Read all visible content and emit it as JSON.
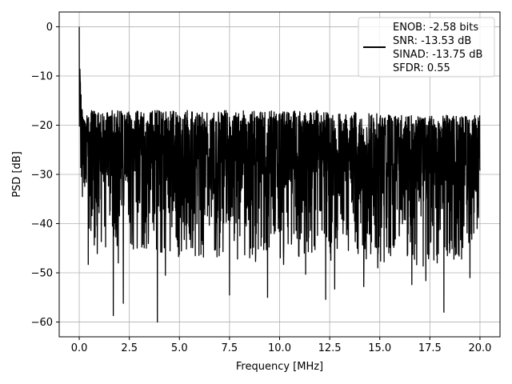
{
  "chart_data": {
    "type": "line",
    "xlabel": "Frequency [MHz]",
    "ylabel": "PSD [dB]",
    "xlim": [
      -1.0,
      21.0
    ],
    "ylim": [
      -63,
      3
    ],
    "x_ticks": [
      0.0,
      2.5,
      5.0,
      7.5,
      10.0,
      12.5,
      15.0,
      17.5,
      20.0
    ],
    "x_tick_labels": [
      "0.0",
      "2.5",
      "5.0",
      "7.5",
      "10.0",
      "12.5",
      "15.0",
      "17.5",
      "20.0"
    ],
    "y_ticks": [
      0,
      -10,
      -20,
      -30,
      -40,
      -50,
      -60
    ],
    "y_tick_labels": [
      "0",
      "−10",
      "−20",
      "−30",
      "−40",
      "−50",
      "−60"
    ],
    "grid": true,
    "legend_position": "top-right",
    "legend_entries": [
      "ENOB: -2.58 bits",
      "SNR: -13.53 dB",
      "SINAD: -13.75 dB",
      "SFDR: 0.55"
    ],
    "series": [
      {
        "color": "#000000",
        "x": [
          0.0,
          0.02,
          0.05,
          0.1,
          0.15,
          0.2,
          0.3,
          0.4,
          0.5,
          0.75,
          1.0,
          1.5,
          2.0,
          3.0,
          4.0,
          5.0,
          6.0,
          7.0,
          8.0,
          9.0,
          10.0,
          11.0,
          12.0,
          13.0,
          14.0,
          15.0,
          16.0,
          17.0,
          18.0,
          19.0,
          20.0
        ],
        "y": [
          0.0,
          -5,
          -10,
          -14,
          -17,
          -19,
          -21,
          -23,
          -24,
          -25,
          -26,
          -26,
          -26,
          -26,
          -26.5,
          -26.5,
          -26.5,
          -26.5,
          -27,
          -27,
          -27,
          -27,
          -27,
          -27,
          -27.5,
          -27.5,
          -27.5,
          -27.5,
          -27.5,
          -27.5,
          -28
        ],
        "upper_envelope": [
          0.0,
          -8,
          -12,
          -16,
          -18,
          -19,
          -18,
          -18,
          -17,
          -17,
          -17,
          -17,
          -17,
          -17,
          -17,
          -17,
          -17,
          -17,
          -17,
          -17,
          -17,
          -17,
          -17,
          -17,
          -17.5,
          -17.5,
          -18,
          -18,
          -18,
          -18,
          -18
        ],
        "lower_envelope": [
          -20,
          -28,
          -30,
          -33,
          -35,
          -37,
          -40,
          -43,
          -44,
          -45,
          -45,
          -45,
          -45,
          -46,
          -46,
          -47,
          -47,
          -47,
          -47,
          -47,
          -47,
          -47,
          -47,
          -48,
          -48,
          -48,
          -48,
          -49,
          -49,
          -49,
          -40
        ],
        "deep_minima": [
          {
            "x": 0.45,
            "y": -48.3
          },
          {
            "x": 0.9,
            "y": -46.1
          },
          {
            "x": 1.7,
            "y": -58.7
          },
          {
            "x": 1.95,
            "y": -48.0
          },
          {
            "x": 2.2,
            "y": -56.2
          },
          {
            "x": 3.35,
            "y": -45.0
          },
          {
            "x": 3.9,
            "y": -60.0
          },
          {
            "x": 4.3,
            "y": -50.5
          },
          {
            "x": 6.2,
            "y": -46.8
          },
          {
            "x": 7.5,
            "y": -54.5
          },
          {
            "x": 7.9,
            "y": -47.2
          },
          {
            "x": 8.8,
            "y": -47.7
          },
          {
            "x": 9.4,
            "y": -55.0
          },
          {
            "x": 10.2,
            "y": -48.3
          },
          {
            "x": 11.3,
            "y": -50.3
          },
          {
            "x": 12.3,
            "y": -55.4
          },
          {
            "x": 12.75,
            "y": -53.3
          },
          {
            "x": 14.2,
            "y": -52.8
          },
          {
            "x": 14.9,
            "y": -49.0
          },
          {
            "x": 16.6,
            "y": -52.4
          },
          {
            "x": 17.3,
            "y": -51.6
          },
          {
            "x": 17.7,
            "y": -47.4
          },
          {
            "x": 18.2,
            "y": -58.0
          },
          {
            "x": 19.5,
            "y": -51.0
          }
        ]
      }
    ]
  }
}
